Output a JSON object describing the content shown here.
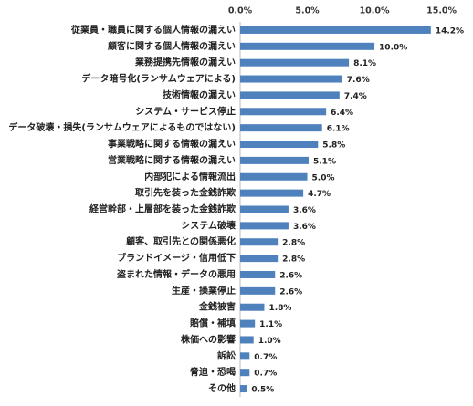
{
  "chart_data": {
    "type": "bar",
    "orientation": "horizontal",
    "categories": [
      "従業員・職員に関する個人情報の漏えい",
      "顧客に関する個人情報の漏えい",
      "業務提携先情報の漏えい",
      "データ暗号化(ランサムウェアによる)",
      "技術情報の漏えい",
      "システム・サービス停止",
      "データ破壊・損失(ランサムウェアによるものではない)",
      "事業戦略に関する情報の漏えい",
      "営業戦略に関する情報の漏えい",
      "内部犯による情報流出",
      "取引先を装った金銭詐欺",
      "経営幹部・上層部を装った金銭詐欺",
      "システム破壊",
      "顧客、取引先との関係悪化",
      "ブランドイメージ・信用低下",
      "盗まれた情報・データの悪用",
      "生産・操業停止",
      "金銭被害",
      "賠償・補填",
      "株価への影響",
      "訴訟",
      "脅迫・恐喝",
      "その他"
    ],
    "values": [
      14.2,
      10.0,
      8.1,
      7.6,
      7.4,
      6.4,
      6.1,
      5.8,
      5.1,
      5.0,
      4.7,
      3.6,
      3.6,
      2.8,
      2.8,
      2.6,
      2.6,
      1.8,
      1.1,
      1.0,
      0.7,
      0.7,
      0.5
    ],
    "value_labels": [
      "14.2%",
      "10.0%",
      "8.1%",
      "7.6%",
      "7.4%",
      "6.4%",
      "6.1%",
      "5.8%",
      "5.1%",
      "5.0%",
      "4.7%",
      "3.6%",
      "3.6%",
      "2.8%",
      "2.8%",
      "2.6%",
      "2.6%",
      "1.8%",
      "1.1%",
      "1.0%",
      "0.7%",
      "0.7%",
      "0.5%"
    ],
    "color": "#4f81bd",
    "xlim": [
      0,
      17
    ],
    "xticks": [
      {
        "value": 0,
        "label": "0.0%"
      },
      {
        "value": 5,
        "label": "5.0%"
      },
      {
        "value": 10,
        "label": "10.0%"
      },
      {
        "value": 15,
        "label": "15.0%"
      }
    ],
    "grid": false
  }
}
